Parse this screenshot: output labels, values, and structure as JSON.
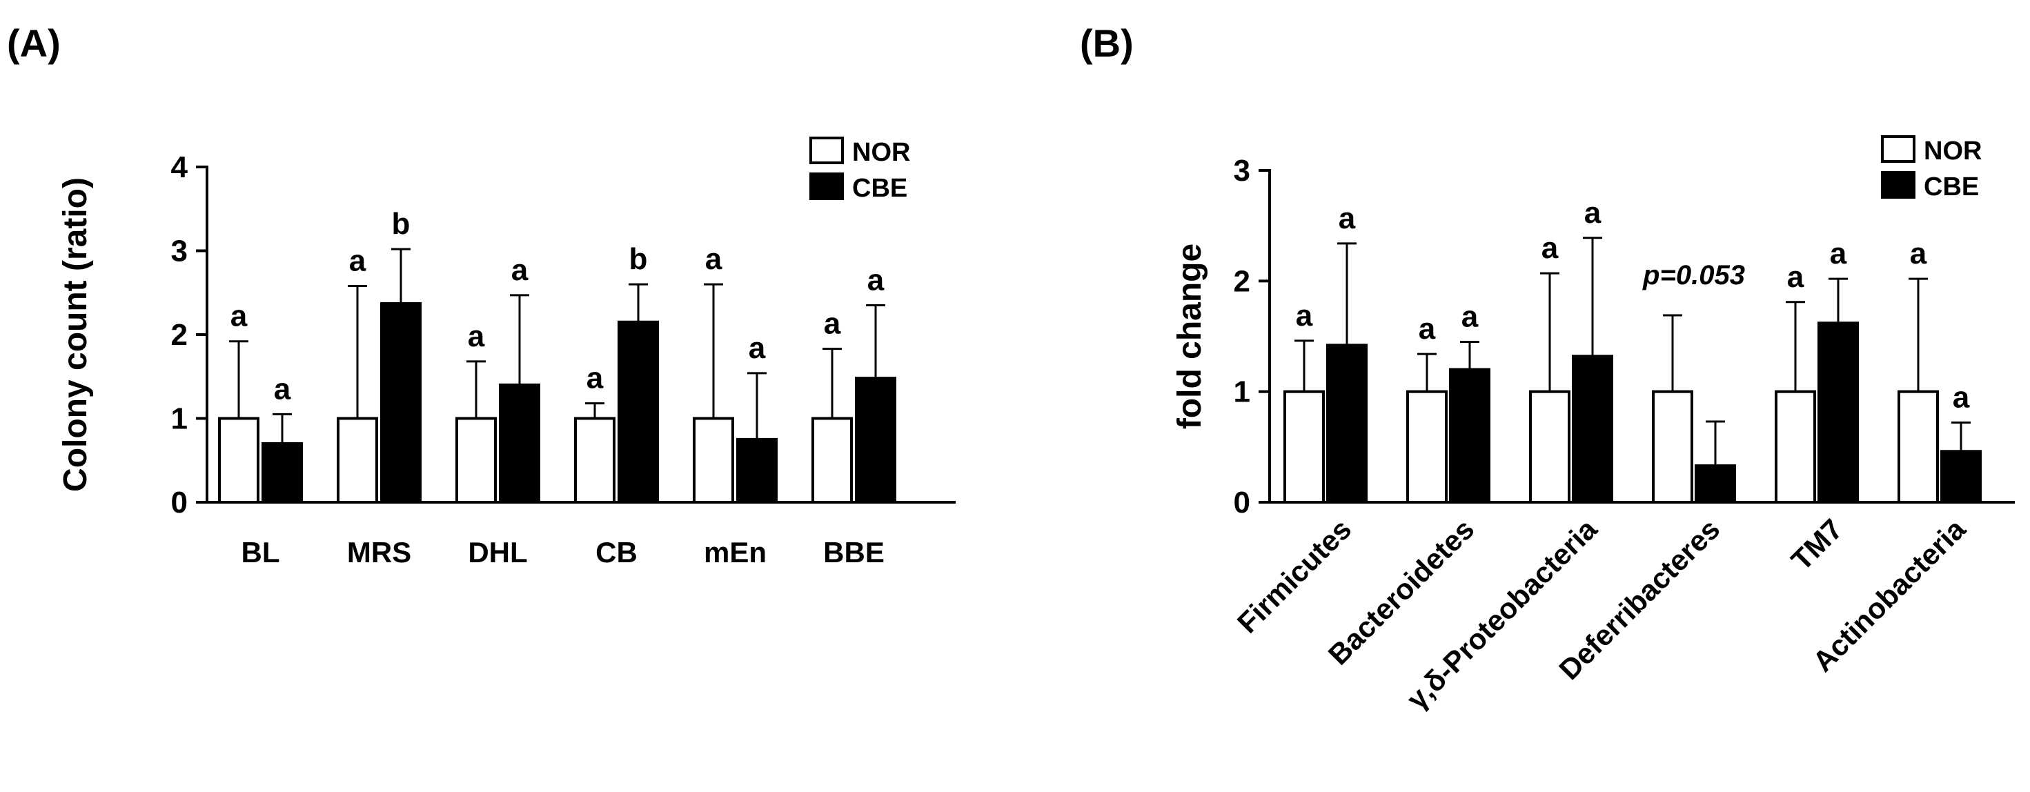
{
  "figure": {
    "panels": [
      "(A)",
      "(B)"
    ]
  },
  "chart_data": [
    {
      "id": "A",
      "type": "bar",
      "panel_label": "(A)",
      "title": "",
      "xlabel": "",
      "ylabel": "Colony count (ratio)",
      "ylim": [
        0,
        4
      ],
      "yticks": [
        "0",
        "1",
        "2",
        "3",
        "4"
      ],
      "categories": [
        "BL",
        "MRS",
        "DHL",
        "CB",
        "mEn",
        "BBE"
      ],
      "series": [
        {
          "name": "NOR",
          "fill": "#ffffff",
          "values": [
            1.0,
            1.0,
            1.0,
            1.0,
            1.0,
            1.0
          ],
          "errors": [
            0.92,
            1.58,
            0.68,
            0.18,
            1.6,
            0.83
          ],
          "letters": [
            "a",
            "a",
            "a",
            "a",
            "a",
            "a"
          ]
        },
        {
          "name": "CBE",
          "fill": "#000000",
          "values": [
            0.7,
            2.37,
            1.4,
            2.15,
            0.75,
            1.48
          ],
          "errors": [
            0.35,
            0.65,
            1.07,
            0.45,
            0.79,
            0.87
          ],
          "letters": [
            "a",
            "b",
            "a",
            "b",
            "a",
            "a"
          ]
        }
      ],
      "legend": [
        "NOR",
        "CBE"
      ],
      "legend_position": "top-right"
    },
    {
      "id": "B",
      "type": "bar",
      "panel_label": "(B)",
      "title": "",
      "xlabel": "",
      "ylabel": "fold change",
      "ylim": [
        0,
        3
      ],
      "yticks": [
        "0",
        "1",
        "2",
        "3"
      ],
      "categories": [
        "Firmicutes",
        "Bacteroidetes",
        "γ,δ-Proteobacteria",
        "Deferribacteres",
        "TM7",
        "Actinobacteria"
      ],
      "series": [
        {
          "name": "NOR",
          "fill": "#ffffff",
          "values": [
            1.0,
            1.0,
            1.0,
            1.0,
            1.0,
            1.0
          ],
          "errors": [
            0.46,
            0.34,
            1.07,
            0.69,
            0.81,
            1.02
          ],
          "letters": [
            "a",
            "a",
            "a",
            "",
            "a",
            "a"
          ]
        },
        {
          "name": "CBE",
          "fill": "#000000",
          "values": [
            1.42,
            1.2,
            1.32,
            0.33,
            1.62,
            0.46
          ],
          "errors": [
            0.92,
            0.25,
            1.07,
            0.4,
            0.4,
            0.26
          ],
          "letters": [
            "a",
            "a",
            "a",
            "",
            "a",
            "a"
          ]
        }
      ],
      "annotations": [
        {
          "text": "p=0.053",
          "category_index": 3
        }
      ],
      "legend": [
        "NOR",
        "CBE"
      ],
      "legend_position": "top-right"
    }
  ]
}
